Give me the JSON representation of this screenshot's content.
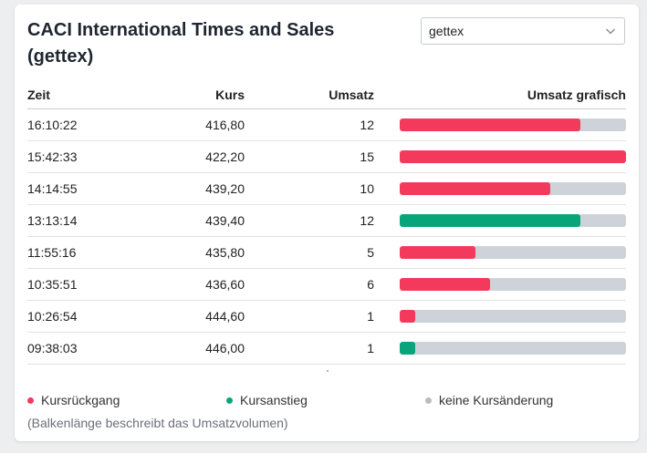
{
  "title": "CACI International Times and Sales (gettex)",
  "exchange_select": {
    "value": "gettex"
  },
  "table": {
    "headers": {
      "time": "Zeit",
      "price": "Kurs",
      "volume": "Umsatz",
      "bar": "Umsatz grafisch"
    },
    "rows": [
      {
        "time": "16:10:22",
        "price": "416,80",
        "volume": "12",
        "bar_fraction": 0.8,
        "trend": "down"
      },
      {
        "time": "15:42:33",
        "price": "422,20",
        "volume": "15",
        "bar_fraction": 1.0,
        "trend": "down"
      },
      {
        "time": "14:14:55",
        "price": "439,20",
        "volume": "10",
        "bar_fraction": 0.667,
        "trend": "down"
      },
      {
        "time": "13:13:14",
        "price": "439,40",
        "volume": "12",
        "bar_fraction": 0.8,
        "trend": "up"
      },
      {
        "time": "11:55:16",
        "price": "435,80",
        "volume": "5",
        "bar_fraction": 0.333,
        "trend": "down"
      },
      {
        "time": "10:35:51",
        "price": "436,60",
        "volume": "6",
        "bar_fraction": 0.4,
        "trend": "down"
      },
      {
        "time": "10:26:54",
        "price": "444,60",
        "volume": "1",
        "bar_fraction": 0.067,
        "trend": "down"
      },
      {
        "time": "09:38:03",
        "price": "446,00",
        "volume": "1",
        "bar_fraction": 0.067,
        "trend": "up"
      }
    ]
  },
  "legend": {
    "down": "Kursrückgang",
    "up": "Kursanstieg",
    "unchanged": "keine Kursänderung",
    "note": "(Balkenlänge beschreibt das Umsatzvolumen)"
  },
  "colors": {
    "down": "#f43a5c",
    "up": "#08a57a",
    "unchanged": "#b6bcc3",
    "track": "#ced3d9"
  }
}
